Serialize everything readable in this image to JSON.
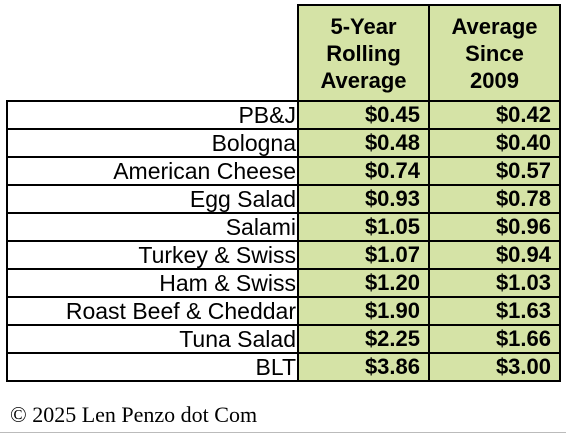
{
  "header": {
    "five_year": "5-Year Rolling Average",
    "since_2009": "Average Since 2009"
  },
  "rows": [
    {
      "name": "PB&J",
      "five_year": "$0.45",
      "since_2009": "$0.42"
    },
    {
      "name": "Bologna",
      "five_year": "$0.48",
      "since_2009": "$0.40"
    },
    {
      "name": "American Cheese",
      "five_year": "$0.74",
      "since_2009": "$0.57"
    },
    {
      "name": "Egg Salad",
      "five_year": "$0.93",
      "since_2009": "$0.78"
    },
    {
      "name": "Salami",
      "five_year": "$1.05",
      "since_2009": "$0.96"
    },
    {
      "name": "Turkey & Swiss",
      "five_year": "$1.07",
      "since_2009": "$0.94"
    },
    {
      "name": "Ham & Swiss",
      "five_year": "$1.20",
      "since_2009": "$1.03"
    },
    {
      "name": "Roast Beef & Cheddar",
      "five_year": "$1.90",
      "since_2009": "$1.63"
    },
    {
      "name": "Tuna Salad",
      "five_year": "$2.25",
      "since_2009": "$1.66"
    },
    {
      "name": "BLT",
      "five_year": "$3.86",
      "since_2009": "$3.00"
    }
  ],
  "footer": {
    "copyright": "© 2025 Len Penzo dot Com"
  },
  "colors": {
    "header_fill": "#d5e3a6",
    "value_fill": "#d5e3a6",
    "border": "#000000"
  }
}
